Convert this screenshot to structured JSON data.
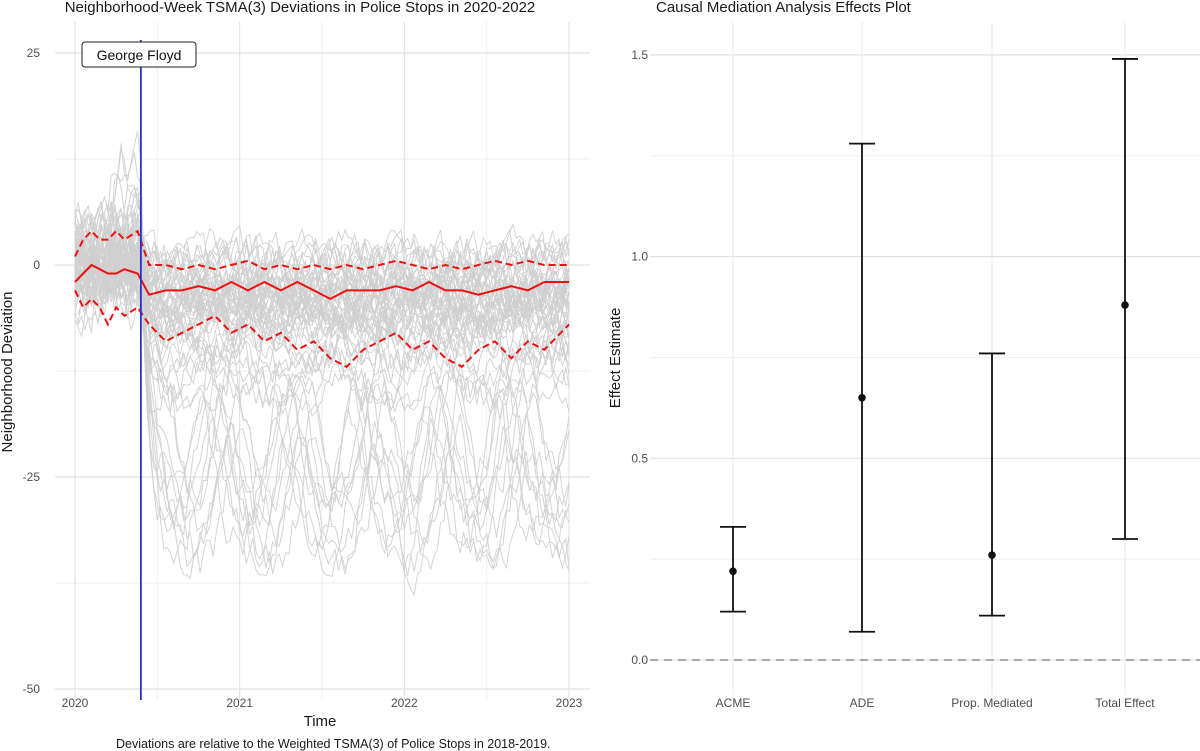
{
  "chart_data": [
    {
      "type": "line",
      "title": "Neighborhood-Week TSMA(3) Deviations in Police Stops in 2020-2022",
      "xlabel": "Time",
      "ylabel": "Neighborhood Deviation",
      "caption": "Deviations are relative to the Weighted TSMA(3) of Police Stops in 2018-2019.",
      "x_ticks": [
        "2020",
        "2021",
        "2022",
        "2023"
      ],
      "y_ticks": [
        25,
        0,
        -25,
        -50
      ],
      "xlim": [
        2020.0,
        2023.0
      ],
      "ylim": [
        -50,
        27
      ],
      "event": {
        "label": "George Floyd",
        "x": 2020.4
      },
      "series": [
        {
          "name": "mean",
          "style": "solid red",
          "points": [
            [
              2020.0,
              -2
            ],
            [
              2020.05,
              -1
            ],
            [
              2020.1,
              0
            ],
            [
              2020.15,
              -0.5
            ],
            [
              2020.2,
              -1
            ],
            [
              2020.25,
              -1
            ],
            [
              2020.3,
              -0.5
            ],
            [
              2020.38,
              -1
            ],
            [
              2020.45,
              -3.5
            ],
            [
              2020.55,
              -3
            ],
            [
              2020.65,
              -3
            ],
            [
              2020.75,
              -2.5
            ],
            [
              2020.85,
              -3
            ],
            [
              2020.95,
              -2
            ],
            [
              2021.05,
              -3
            ],
            [
              2021.15,
              -2
            ],
            [
              2021.25,
              -3
            ],
            [
              2021.35,
              -2
            ],
            [
              2021.45,
              -3
            ],
            [
              2021.55,
              -4
            ],
            [
              2021.65,
              -3
            ],
            [
              2021.75,
              -3
            ],
            [
              2021.85,
              -3
            ],
            [
              2021.95,
              -2.5
            ],
            [
              2022.05,
              -3
            ],
            [
              2022.15,
              -2
            ],
            [
              2022.25,
              -3
            ],
            [
              2022.35,
              -3
            ],
            [
              2022.45,
              -3.5
            ],
            [
              2022.55,
              -3
            ],
            [
              2022.65,
              -2.5
            ],
            [
              2022.75,
              -3
            ],
            [
              2022.85,
              -2
            ],
            [
              2022.95,
              -2
            ],
            [
              2023.0,
              -2
            ]
          ]
        },
        {
          "name": "upper band",
          "style": "dashed red",
          "points": [
            [
              2020.0,
              1
            ],
            [
              2020.05,
              3
            ],
            [
              2020.1,
              4
            ],
            [
              2020.15,
              3
            ],
            [
              2020.2,
              3
            ],
            [
              2020.25,
              4
            ],
            [
              2020.3,
              3
            ],
            [
              2020.38,
              4
            ],
            [
              2020.45,
              0
            ],
            [
              2020.55,
              0
            ],
            [
              2020.65,
              -0.5
            ],
            [
              2020.75,
              0
            ],
            [
              2020.85,
              -0.5
            ],
            [
              2020.95,
              0
            ],
            [
              2021.05,
              0.5
            ],
            [
              2021.15,
              -0.5
            ],
            [
              2021.25,
              0
            ],
            [
              2021.35,
              -0.5
            ],
            [
              2021.45,
              0
            ],
            [
              2021.55,
              -0.5
            ],
            [
              2021.65,
              0
            ],
            [
              2021.75,
              -0.5
            ],
            [
              2021.85,
              0
            ],
            [
              2021.95,
              0.5
            ],
            [
              2022.05,
              0
            ],
            [
              2022.15,
              -0.5
            ],
            [
              2022.25,
              0
            ],
            [
              2022.35,
              -0.5
            ],
            [
              2022.45,
              0
            ],
            [
              2022.55,
              0.5
            ],
            [
              2022.65,
              0
            ],
            [
              2022.75,
              0.5
            ],
            [
              2022.85,
              0
            ],
            [
              2022.95,
              0
            ],
            [
              2023.0,
              0
            ]
          ]
        },
        {
          "name": "lower band",
          "style": "dashed red",
          "points": [
            [
              2020.0,
              -3
            ],
            [
              2020.05,
              -5
            ],
            [
              2020.1,
              -4
            ],
            [
              2020.15,
              -5
            ],
            [
              2020.2,
              -7
            ],
            [
              2020.25,
              -5
            ],
            [
              2020.3,
              -6
            ],
            [
              2020.38,
              -5
            ],
            [
              2020.45,
              -7
            ],
            [
              2020.55,
              -9
            ],
            [
              2020.65,
              -8
            ],
            [
              2020.75,
              -7
            ],
            [
              2020.85,
              -6
            ],
            [
              2020.95,
              -8
            ],
            [
              2021.05,
              -7
            ],
            [
              2021.15,
              -9
            ],
            [
              2021.25,
              -8
            ],
            [
              2021.35,
              -10
            ],
            [
              2021.45,
              -9
            ],
            [
              2021.55,
              -11
            ],
            [
              2021.65,
              -12
            ],
            [
              2021.75,
              -10
            ],
            [
              2021.85,
              -9
            ],
            [
              2021.95,
              -8
            ],
            [
              2022.05,
              -10
            ],
            [
              2022.15,
              -9
            ],
            [
              2022.25,
              -11
            ],
            [
              2022.35,
              -12
            ],
            [
              2022.45,
              -10
            ],
            [
              2022.55,
              -9
            ],
            [
              2022.65,
              -11
            ],
            [
              2022.75,
              -9
            ],
            [
              2022.85,
              -10
            ],
            [
              2022.95,
              -8
            ],
            [
              2023.0,
              -7
            ]
          ]
        }
      ]
    },
    {
      "type": "errorbar",
      "title": "Causal Mediation Analysis Effects Plot",
      "xlabel": "",
      "ylabel": "Effect Estimate",
      "categories": [
        "ACME",
        "ADE",
        "Prop. Mediated",
        "Total Effect"
      ],
      "estimates": [
        0.22,
        0.65,
        0.26,
        0.88
      ],
      "lower": [
        0.12,
        0.07,
        0.11,
        0.3
      ],
      "upper": [
        0.33,
        1.28,
        0.76,
        1.49
      ],
      "y_ticks": [
        "0.0",
        "0.5",
        "1.0",
        "1.5"
      ],
      "ylim": [
        -0.07,
        1.52
      ],
      "reference_line": 0
    }
  ]
}
